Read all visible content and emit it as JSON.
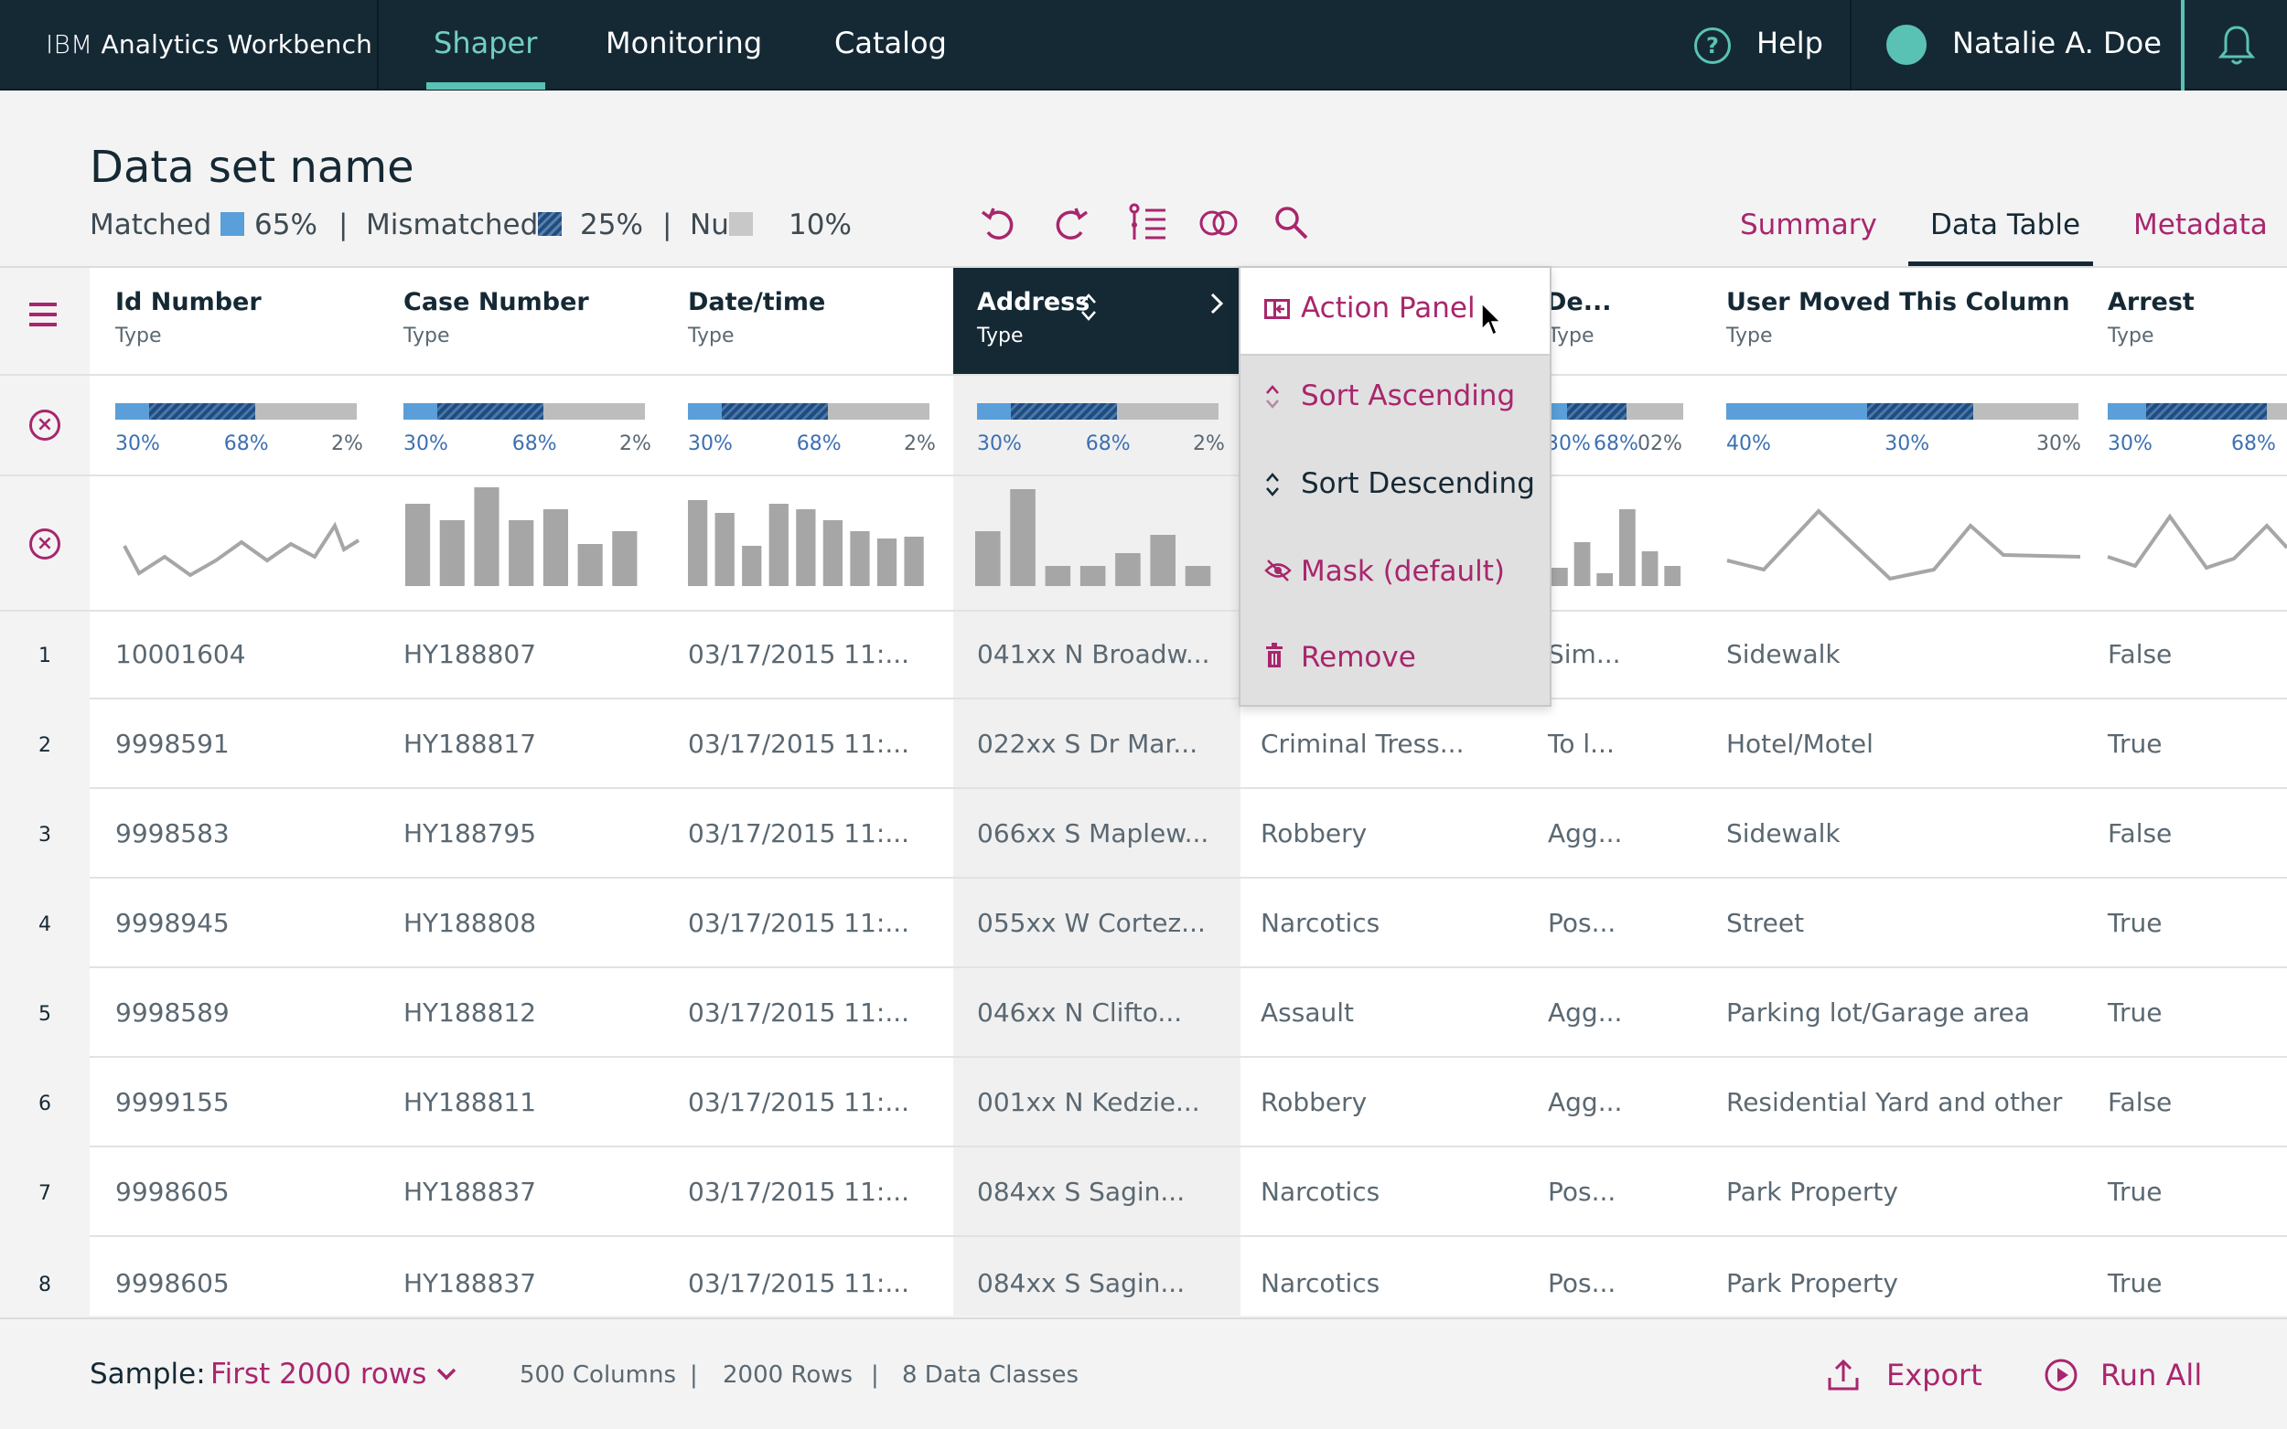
{
  "nav": {
    "brand_ibm": "IBM",
    "brand_name": "Analytics Workbench",
    "tabs": [
      "Shaper",
      "Monitoring",
      "Catalog"
    ],
    "active_tab": "Shaper",
    "help_label": "Help",
    "user_name": "Natalie A. Doe"
  },
  "header": {
    "title": "Data set name",
    "matched_label": "Matched",
    "matched_pct": "65%",
    "mismatched_label": "Mismatched",
    "mismatched_pct": "25%",
    "null_label": "Nu",
    "null_pct": "10%",
    "separator": "|",
    "views": [
      "Summary",
      "Data Table",
      "Metadata"
    ],
    "active_view": "Data Table"
  },
  "toolbar_icons": [
    "undo-icon",
    "redo-icon",
    "list-tree-icon",
    "join-icon",
    "search-icon"
  ],
  "table": {
    "columns": [
      {
        "name": "Id Number",
        "type": "Type"
      },
      {
        "name": "Case Number",
        "type": "Type"
      },
      {
        "name": "Date/time",
        "type": "Type"
      },
      {
        "name": "Address",
        "type": "Type"
      },
      {
        "name": "",
        "type": ""
      },
      {
        "name": "De...",
        "type": "Type"
      },
      {
        "name": "User Moved This Column",
        "type": "Type"
      },
      {
        "name": "Arrest",
        "type": "Type"
      }
    ],
    "quality": [
      {
        "matched": 30,
        "mismatched": 68,
        "null": 2,
        "labels": [
          "30%",
          "68%",
          "2%"
        ]
      },
      {
        "matched": 30,
        "mismatched": 68,
        "null": 2,
        "labels": [
          "30%",
          "68%",
          "2%"
        ]
      },
      {
        "matched": 30,
        "mismatched": 68,
        "null": 2,
        "labels": [
          "30%",
          "68%",
          "2%"
        ]
      },
      {
        "matched": 30,
        "mismatched": 68,
        "null": 2,
        "labels": [
          "30%",
          "68%",
          "2%"
        ]
      },
      {
        "matched": 0,
        "mismatched": 0,
        "null": 0,
        "labels": [
          "",
          "",
          ""
        ]
      },
      {
        "matched": 30,
        "mismatched": 68,
        "null": 2,
        "labels": [
          "30%",
          "68%",
          "02%"
        ]
      },
      {
        "matched": 40,
        "mismatched": 30,
        "null": 30,
        "labels": [
          "40%",
          "30%",
          "30%"
        ]
      },
      {
        "matched": 30,
        "mismatched": 68,
        "null": 2,
        "labels": [
          "30%",
          "68%",
          ""
        ]
      }
    ],
    "rows": [
      {
        "num": "1",
        "cells": [
          "10001604",
          "HY188807",
          "03/17/2015 11:...",
          "041xx N Broadw...",
          "",
          "Sim...",
          "Sidewalk",
          "False"
        ]
      },
      {
        "num": "2",
        "cells": [
          "9998591",
          "HY188817",
          "03/17/2015 11:...",
          "022xx S Dr Mar...",
          "Criminal Tress...",
          "To l...",
          "Hotel/Motel",
          "True"
        ]
      },
      {
        "num": "3",
        "cells": [
          "9998583",
          "HY188795",
          "03/17/2015 11:...",
          "066xx S Maplew...",
          "Robbery",
          "Agg...",
          "Sidewalk",
          "False"
        ]
      },
      {
        "num": "4",
        "cells": [
          "9998945",
          "HY188808",
          "03/17/2015 11:...",
          "055xx W Cortez...",
          "Narcotics",
          "Pos...",
          "Street",
          "True"
        ]
      },
      {
        "num": "5",
        "cells": [
          "9998589",
          "HY188812",
          "03/17/2015 11:...",
          "046xx N Clifto...",
          "Assault",
          "Agg...",
          "Parking lot/Garage area",
          "True"
        ]
      },
      {
        "num": "6",
        "cells": [
          "9999155",
          "HY188811",
          "03/17/2015 11:...",
          "001xx N Kedzie...",
          "Robbery",
          "Agg...",
          "Residential Yard and other",
          "False"
        ]
      },
      {
        "num": "7",
        "cells": [
          "9998605",
          "HY188837",
          "03/17/2015 11:...",
          "084xx S Sagin...",
          "Narcotics",
          "Pos...",
          "Park Property",
          "True"
        ]
      },
      {
        "num": "8",
        "cells": [
          "9998605",
          "HY188837",
          "03/17/2015 11:...",
          "084xx S Sagin...",
          "Narcotics",
          "Pos...",
          "Park Property",
          "True"
        ]
      }
    ]
  },
  "context_menu": {
    "items": [
      "Action Panel",
      "Sort Ascending",
      "Sort Descending",
      "Mask (default)",
      "Remove"
    ]
  },
  "footer": {
    "sample_label": "Sample:",
    "sample_value": "First 2000 rows",
    "columns": "500 Columns",
    "rows": "2000 Rows",
    "classes": "8 Data Classes",
    "separator": "|",
    "export_label": "Export",
    "run_label": "Run All"
  },
  "colors": {
    "nav_bg": "#152935",
    "accent_teal": "#5ac2b4",
    "accent_magenta": "#a8266d",
    "matched_blue": "#5a9fd9",
    "mismatched_navy": "#1d4d83",
    "null_grey": "#c8c8c8"
  }
}
